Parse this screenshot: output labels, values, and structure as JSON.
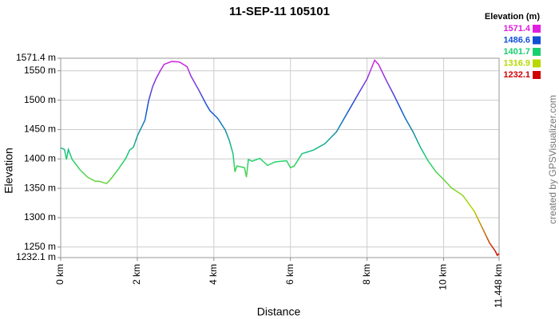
{
  "chart_data": {
    "type": "line",
    "title": "11-SEP-11 105101",
    "x_label": "Distance",
    "y_label": "Elevation",
    "credit": "created by GPSVisualizer.com",
    "x": [
      0,
      0.1,
      0.15,
      0.2,
      0.3,
      0.5,
      0.7,
      0.9,
      1.0,
      1.2,
      1.3,
      1.5,
      1.7,
      1.8,
      1.9,
      2.0,
      2.2,
      2.3,
      2.4,
      2.5,
      2.6,
      2.7,
      2.9,
      3.1,
      3.3,
      3.4,
      3.6,
      3.8,
      3.9,
      4.1,
      4.3,
      4.4,
      4.5,
      4.55,
      4.6,
      4.8,
      4.85,
      4.9,
      5.0,
      5.2,
      5.4,
      5.6,
      5.9,
      6.0,
      6.1,
      6.3,
      6.6,
      6.9,
      7.2,
      7.5,
      7.8,
      8.0,
      8.2,
      8.3,
      8.5,
      8.7,
      9.0,
      9.2,
      9.4,
      9.6,
      9.8,
      10.0,
      10.2,
      10.5,
      10.8,
      11.0,
      11.2,
      11.35,
      11.4,
      11.448
    ],
    "values": [
      1419,
      1416,
      1399,
      1416,
      1399,
      1382,
      1369,
      1362,
      1362,
      1358,
      1365,
      1382,
      1401,
      1415,
      1420,
      1439,
      1466,
      1500,
      1523,
      1538,
      1550,
      1561,
      1566,
      1565,
      1557,
      1541,
      1518,
      1493,
      1482,
      1469,
      1449,
      1432,
      1409,
      1378,
      1388,
      1385,
      1369,
      1399,
      1396,
      1401,
      1389,
      1395,
      1397,
      1385,
      1388,
      1409,
      1415,
      1426,
      1446,
      1480,
      1514,
      1536,
      1568,
      1561,
      1534,
      1509,
      1469,
      1446,
      1419,
      1396,
      1378,
      1365,
      1351,
      1338,
      1311,
      1284,
      1257,
      1243,
      1236,
      1239
    ],
    "xlim": [
      0,
      11.448
    ],
    "xticks": [
      {
        "value": 0,
        "label": "0 km"
      },
      {
        "value": 2,
        "label": "2 km"
      },
      {
        "value": 4,
        "label": "4 km"
      },
      {
        "value": 6,
        "label": "6 km"
      },
      {
        "value": 8,
        "label": "8 km"
      },
      {
        "value": 10,
        "label": "10 km"
      },
      {
        "value": 11.448,
        "label": "11.448 km"
      }
    ],
    "ylim": [
      1232.1,
      1571.4
    ],
    "yticks": [
      {
        "value": 1232.1,
        "label": "1232.1 m"
      },
      {
        "value": 1250,
        "label": "1250 m"
      },
      {
        "value": 1300,
        "label": "1300 m"
      },
      {
        "value": 1350,
        "label": "1350 m"
      },
      {
        "value": 1400,
        "label": "1400 m"
      },
      {
        "value": 1450,
        "label": "1450 m"
      },
      {
        "value": 1500,
        "label": "1500 m"
      },
      {
        "value": 1550,
        "label": "1550 m"
      },
      {
        "value": 1571.4,
        "label": "1571.4 m"
      }
    ],
    "grid": true,
    "legend": {
      "title": "Elevation (m)",
      "entries": [
        {
          "value": 1571.4,
          "color": "#e020e0"
        },
        {
          "value": 1486.6,
          "color": "#1050d8"
        },
        {
          "value": 1401.7,
          "color": "#18d070"
        },
        {
          "value": 1316.9,
          "color": "#b8d800"
        },
        {
          "value": 1232.1,
          "color": "#d00000"
        }
      ]
    }
  }
}
